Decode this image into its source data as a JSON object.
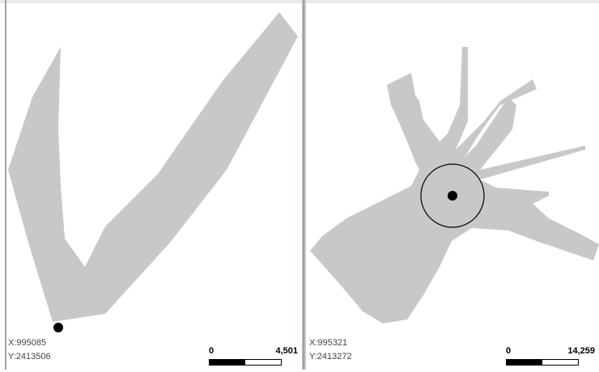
{
  "left_map": {
    "coords": {
      "x": "X:995085",
      "y": "Y:2413506"
    },
    "scale": {
      "min": "0",
      "max": "4,501"
    },
    "feature_color": "#c8c8c8",
    "point_color": "#000000"
  },
  "right_map": {
    "coords": {
      "x": "X:995321",
      "y": "Y:2413272"
    },
    "scale": {
      "min": "0",
      "max": "14,259"
    },
    "feature_color": "#c8c8c8",
    "point_color": "#000000"
  }
}
